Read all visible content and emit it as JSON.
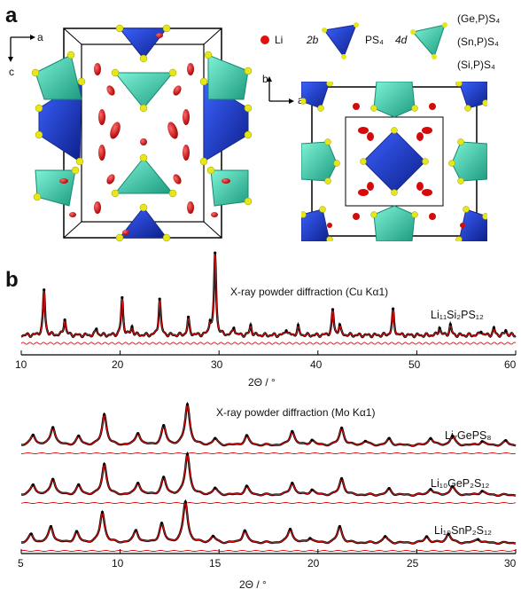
{
  "panel_a": {
    "letter": "a",
    "axes_left": {
      "horizontal": "a",
      "vertical": "c"
    },
    "axes_right": {
      "horizontal": "a",
      "vertical": "b"
    },
    "legend": {
      "li": "Li",
      "site_2b": "2b",
      "ps4": "PS₄",
      "site_4d": "4d",
      "mixed": [
        "(Ge,P)S₄",
        "(Sn,P)S₄",
        "(Si,P)S₄"
      ]
    },
    "colors": {
      "li": "#e01010",
      "blue_tet": "#1f3fbf",
      "teal_tet": "#3cc9a8",
      "sulfur": "#e6e61a"
    }
  },
  "panel_b": {
    "letter": "b",
    "top": {
      "title": "X-ray powder diffraction (Cu Kα1)",
      "sample": "Li₁₁Si₂PS₁₂",
      "xlabel": "2Θ / °",
      "ticks": [
        "10",
        "20",
        "30",
        "40",
        "50",
        "60"
      ]
    },
    "bottom": {
      "title": "X-ray powder diffraction (Mo Kα1)",
      "samples": [
        "Li₇GePS₈",
        "Li₁₀GeP₂S₁₂",
        "Li₁₀SnP₂S₁₂"
      ],
      "xlabel": "2Θ / °",
      "ticks": [
        "5",
        "10",
        "15",
        "20",
        "25",
        "30"
      ]
    }
  },
  "chart_data": [
    {
      "type": "line",
      "title": "X-ray powder diffraction (Cu Kα1)",
      "xlabel": "2Θ / °",
      "xlim": [
        10,
        60
      ],
      "series": [
        {
          "name": "Li₁₁Si₂PS₁₂",
          "peaks": [
            [
              12.3,
              0.55
            ],
            [
              14.4,
              0.2
            ],
            [
              17.6,
              0.08
            ],
            [
              20.2,
              0.45
            ],
            [
              21.2,
              0.1
            ],
            [
              24.0,
              0.45
            ],
            [
              26.9,
              0.2
            ],
            [
              29.1,
              0.15
            ],
            [
              29.6,
              1.0
            ],
            [
              31.5,
              0.1
            ],
            [
              33.2,
              0.12
            ],
            [
              36.8,
              0.08
            ],
            [
              38.0,
              0.1
            ],
            [
              41.5,
              0.3
            ],
            [
              42.2,
              0.12
            ],
            [
              47.6,
              0.3
            ],
            [
              52.3,
              0.1
            ],
            [
              53.4,
              0.12
            ],
            [
              56.5,
              0.06
            ],
            [
              57.8,
              0.08
            ],
            [
              59.0,
              0.06
            ]
          ]
        }
      ]
    },
    {
      "type": "line",
      "title": "X-ray powder diffraction (Mo Kα1)",
      "xlabel": "2Θ / °",
      "xlim": [
        5,
        30
      ],
      "series": [
        {
          "name": "Li₇GePS₈",
          "peaks": [
            [
              5.6,
              0.25
            ],
            [
              6.6,
              0.45
            ],
            [
              7.9,
              0.2
            ],
            [
              9.2,
              0.75
            ],
            [
              10.9,
              0.3
            ],
            [
              12.2,
              0.45
            ],
            [
              13.4,
              1.0
            ],
            [
              14.8,
              0.15
            ],
            [
              16.4,
              0.22
            ],
            [
              18.7,
              0.35
            ],
            [
              19.7,
              0.12
            ],
            [
              21.2,
              0.42
            ],
            [
              22.4,
              0.1
            ],
            [
              23.6,
              0.15
            ],
            [
              25.7,
              0.18
            ],
            [
              26.8,
              0.22
            ],
            [
              28.3,
              0.1
            ],
            [
              29.5,
              0.1
            ]
          ]
        },
        {
          "name": "Li₁₀GeP₂S₁₂",
          "peaks": [
            [
              5.6,
              0.25
            ],
            [
              6.6,
              0.4
            ],
            [
              7.9,
              0.22
            ],
            [
              9.2,
              0.75
            ],
            [
              10.9,
              0.3
            ],
            [
              12.2,
              0.4
            ],
            [
              13.4,
              1.0
            ],
            [
              14.8,
              0.15
            ],
            [
              16.4,
              0.2
            ],
            [
              18.7,
              0.3
            ],
            [
              19.7,
              0.12
            ],
            [
              21.2,
              0.4
            ],
            [
              23.6,
              0.14
            ],
            [
              25.7,
              0.15
            ],
            [
              26.8,
              0.2
            ],
            [
              28.3,
              0.1
            ]
          ]
        },
        {
          "name": "Li₁₀SnP₂S₁₂",
          "peaks": [
            [
              5.5,
              0.2
            ],
            [
              6.5,
              0.4
            ],
            [
              7.8,
              0.25
            ],
            [
              9.1,
              0.75
            ],
            [
              10.8,
              0.3
            ],
            [
              12.1,
              0.45
            ],
            [
              13.3,
              1.0
            ],
            [
              14.7,
              0.15
            ],
            [
              16.3,
              0.3
            ],
            [
              18.6,
              0.35
            ],
            [
              19.6,
              0.12
            ],
            [
              21.1,
              0.4
            ],
            [
              23.4,
              0.15
            ],
            [
              25.5,
              0.15
            ],
            [
              26.6,
              0.22
            ],
            [
              28.1,
              0.1
            ]
          ]
        }
      ]
    }
  ]
}
